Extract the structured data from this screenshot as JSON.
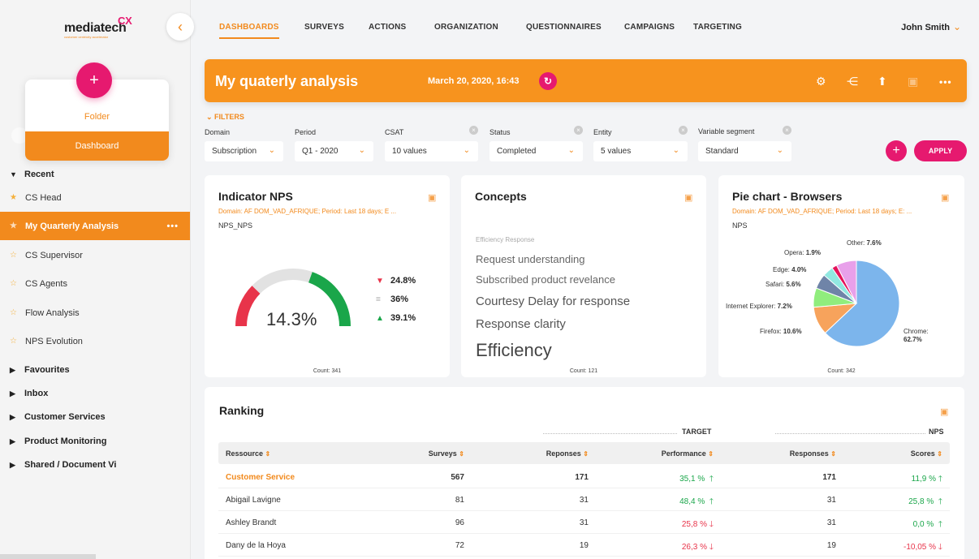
{
  "brand": {
    "name": "mediatech",
    "mark": "CX",
    "tagline": "customer centricity accelerator",
    "accent": "#f28a1d",
    "pink": "#e6196f"
  },
  "sidebar": {
    "collapse_icon": "chevron-left-icon",
    "new_menu": {
      "add_label": "+",
      "folder": "Folder",
      "dashboard": "Dashboard"
    },
    "recent_label": "Recent",
    "recent_items": [
      {
        "label": "CS Head"
      },
      {
        "label": "My Quarterly Analysis",
        "more": "•••"
      },
      {
        "label": "CS Supervisor"
      },
      {
        "label": "CS Agents"
      },
      {
        "label": "Flow Analysis"
      },
      {
        "label": "NPS Evolution"
      }
    ],
    "sections": [
      "Favourites",
      "Inbox",
      "Customer Services",
      "Product Monitoring",
      "Shared / Document Vi"
    ]
  },
  "topnav": {
    "tabs": [
      "DASHBOARDS",
      "SURVEYS",
      "ACTIONS",
      "ORGANIZATION",
      "QUESTIONNAIRES",
      "CAMPAIGNS",
      "TARGETING"
    ],
    "user": "John Smith"
  },
  "header": {
    "title": "My quaterly analysis",
    "date": "March 20, 2020, 16:43",
    "icons": [
      "gear-icon",
      "share-icon",
      "export-icon",
      "save-icon",
      "more-icon"
    ]
  },
  "filters": {
    "toggle": "FILTERS",
    "items": [
      {
        "label": "Domain",
        "value": "Subscription"
      },
      {
        "label": "Period",
        "value": "Q1 - 2020"
      },
      {
        "label": "CSAT",
        "value": "10 values"
      },
      {
        "label": "Status",
        "value": "Completed"
      },
      {
        "label": "Entity",
        "value": "5 values"
      },
      {
        "label": "Variable segment",
        "value": "Standard"
      }
    ],
    "add": "+",
    "apply": "APPLY"
  },
  "nps_card": {
    "title": "Indicator NPS",
    "subtitle": "Domain: AF DOM_VAD_AFRIQUE; Period: Last 18 days; E ...",
    "tag": "NPS_NPS",
    "value": "14.3%",
    "detractors": "24.8%",
    "passives": "36%",
    "promoters": "39.1%",
    "count": "Count: 341",
    "gauge": {
      "red_fraction": 0.248,
      "grey_fraction": 0.36,
      "green_fraction": 0.391
    }
  },
  "concepts_card": {
    "title": "Concepts",
    "header": "Efficiency   Response",
    "words": [
      "Request understanding",
      "Subscribed product revelance",
      "Courtesy  Delay for response",
      "Response clarity",
      "Efficiency"
    ],
    "count": "Count: 121"
  },
  "pie_card": {
    "title": "Pie chart - Browsers",
    "subtitle": "Domain: AF DOM_VAD_AFRIQUE; Period: Last 18 days; E: ...",
    "tag": "NPS",
    "count": "Count: 342",
    "labels": [
      {
        "name": "Other:",
        "value": "7.6%"
      },
      {
        "name": "Opera:",
        "value": "1.9%"
      },
      {
        "name": "Edge:",
        "value": "4.0%"
      },
      {
        "name": "Safari:",
        "value": "5.6%"
      },
      {
        "name": "Internet Explorer:",
        "value": "7.2%"
      },
      {
        "name": "Firefox:",
        "value": "10.6%"
      },
      {
        "name": "Chrome:",
        "value": "62.7%"
      }
    ]
  },
  "chart_data": {
    "type": "pie",
    "title": "Pie chart - Browsers",
    "slices": [
      {
        "name": "Chrome",
        "value": 62.7,
        "color": "#7cb5ec"
      },
      {
        "name": "Firefox",
        "value": 10.6,
        "color": "#f7a35c"
      },
      {
        "name": "Internet Explorer",
        "value": 7.2,
        "color": "#90ed7d"
      },
      {
        "name": "Safari",
        "value": 5.6,
        "color": "#6f84a8"
      },
      {
        "name": "Edge",
        "value": 4.0,
        "color": "#91e8e1"
      },
      {
        "name": "Opera",
        "value": 1.9,
        "color": "#e4135a"
      },
      {
        "name": "Other",
        "value": 7.6,
        "color": "#e8a0ea"
      }
    ]
  },
  "ranking": {
    "title": "Ranking",
    "group_target": "TARGET",
    "group_nps": "NPS",
    "columns": [
      "Ressource",
      "Surveys",
      "Reponses",
      "Performance",
      "Responses",
      "Scores"
    ],
    "rows": [
      {
        "name": "Customer Service",
        "surveys": "567",
        "reponses": "171",
        "perf": "35,1 %",
        "perf_dir": "up",
        "responses": "171",
        "score": "11,9 %",
        "score_dir": "up",
        "highlight": true
      },
      {
        "name": "Abigail Lavigne",
        "surveys": "81",
        "reponses": "31",
        "perf": "48,4 %",
        "perf_dir": "up",
        "responses": "31",
        "score": "25,8 %",
        "score_dir": "up"
      },
      {
        "name": "Ashley Brandt",
        "surveys": "96",
        "reponses": "31",
        "perf": "25,8 %",
        "perf_dir": "down",
        "responses": "31",
        "score": "0,0 %",
        "score_dir": "up"
      },
      {
        "name": "Dany de la Hoya",
        "surveys": "72",
        "reponses": "19",
        "perf": "26,3 %",
        "perf_dir": "down",
        "responses": "19",
        "score": "-10,05 %",
        "score_dir": "down"
      }
    ]
  }
}
